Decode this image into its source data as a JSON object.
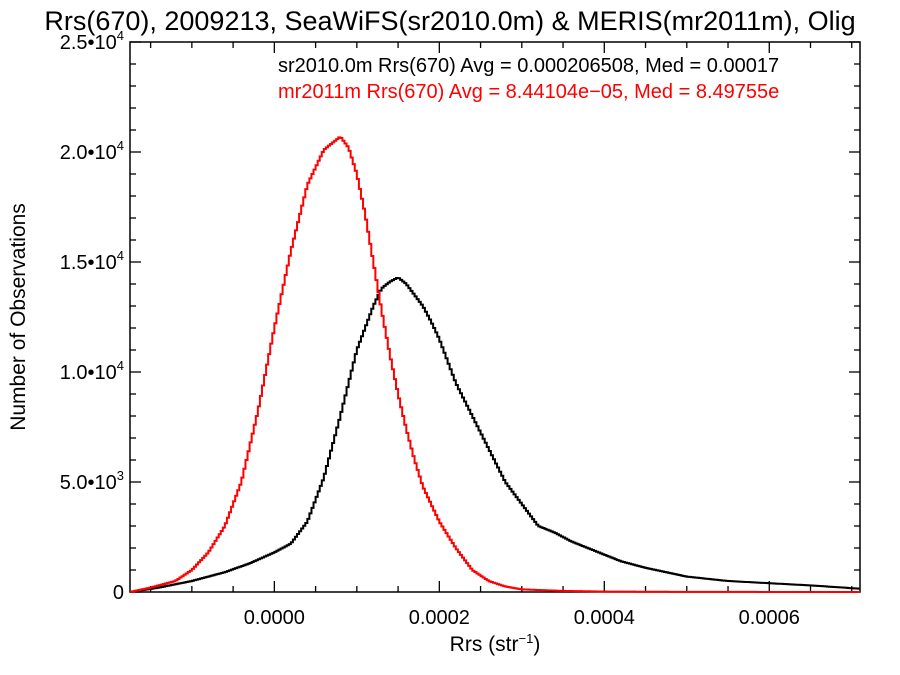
{
  "chart_data": {
    "type": "line",
    "title": "Rrs(670), 2009213, SeaWiFS(sr2010.0m) & MERIS(mr2011m), Olig",
    "xlabel": "Rrs (str",
    "xlabel_sup": "−1",
    "xlabel_end": ")",
    "ylabel": "Number of Observations",
    "xlim": [
      -0.000175,
      0.00071
    ],
    "ylim": [
      0,
      25000
    ],
    "x_ticks": [
      {
        "value": 0.0,
        "label": "0.0000"
      },
      {
        "value": 0.0002,
        "label": "0.0002"
      },
      {
        "value": 0.0004,
        "label": "0.0004"
      },
      {
        "value": 0.0006,
        "label": "0.0006"
      }
    ],
    "y_ticks": [
      {
        "value": 0,
        "label": "0"
      },
      {
        "value": 5000,
        "label": "5.0•10",
        "exp": "3"
      },
      {
        "value": 10000,
        "label": "1.0•10",
        "exp": "4"
      },
      {
        "value": 15000,
        "label": "1.5•10",
        "exp": "4"
      },
      {
        "value": 20000,
        "label": "2.0•10",
        "exp": "4"
      },
      {
        "value": 25000,
        "label": "2.5•10",
        "exp": "4"
      }
    ],
    "grid": false,
    "legend_placement": "top-right",
    "series": [
      {
        "name": "sr2010.0m Rrs(670) Avg = 0.000206508, Med = 0.00017",
        "color": "#000000",
        "x": [
          -0.000175,
          -0.00014,
          -0.0001,
          -6e-05,
          -3e-05,
          0.0,
          2e-05,
          4e-05,
          6e-05,
          8e-05,
          0.0001,
          0.00012,
          0.00013,
          0.00014,
          0.00015,
          0.00016,
          0.00017,
          0.00018,
          0.00019,
          0.0002,
          0.00022,
          0.00024,
          0.00026,
          0.00028,
          0.0003,
          0.00032,
          0.00034,
          0.00036,
          0.00038,
          0.0004,
          0.00042,
          0.00045,
          0.0005,
          0.00055,
          0.0006,
          0.00065,
          0.00071
        ],
        "y": [
          0,
          200,
          500,
          900,
          1300,
          1800,
          2200,
          3200,
          5200,
          8000,
          11000,
          13000,
          13800,
          14100,
          14300,
          14000,
          13500,
          13000,
          12300,
          11500,
          9500,
          8000,
          6500,
          5000,
          4000,
          3000,
          2700,
          2300,
          2000,
          1700,
          1400,
          1100,
          700,
          500,
          400,
          300,
          150
        ]
      },
      {
        "name": "mr2011m Rrs(670) Avg = 8.44104e−05, Med = 8.49755e",
        "color": "#ff0000",
        "x": [
          -0.000175,
          -0.00015,
          -0.00012,
          -0.0001,
          -8e-05,
          -6e-05,
          -4e-05,
          -2e-05,
          0.0,
          2e-05,
          4e-05,
          6e-05,
          8e-05,
          9e-05,
          0.0001,
          0.00011,
          0.00012,
          0.00013,
          0.00014,
          0.00015,
          0.00016,
          0.00017,
          0.00018,
          0.0002,
          0.00022,
          0.00024,
          0.00026,
          0.00028,
          0.0003,
          0.00035,
          0.0004,
          0.0005,
          0.00071
        ],
        "y": [
          0,
          200,
          500,
          1000,
          1800,
          3000,
          5000,
          8200,
          12000,
          15500,
          18500,
          20100,
          20700,
          20200,
          19000,
          17200,
          15000,
          12800,
          10800,
          9000,
          7400,
          6000,
          4800,
          3200,
          2000,
          1000,
          500,
          250,
          120,
          50,
          20,
          5,
          0
        ]
      }
    ]
  }
}
